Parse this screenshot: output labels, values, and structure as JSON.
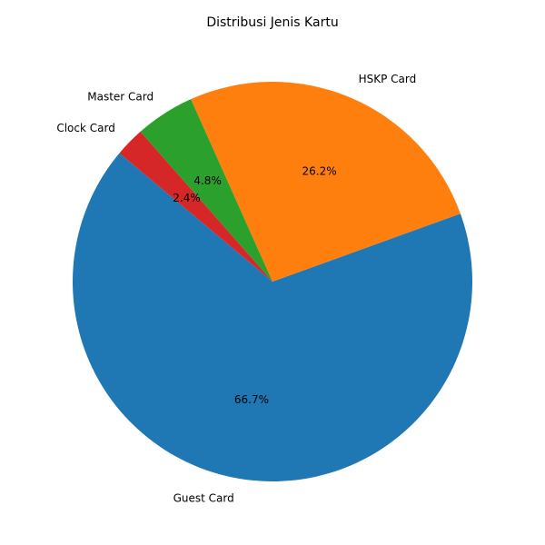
{
  "chart_data": {
    "type": "pie",
    "title": "Distribusi Jenis Kartu",
    "labels": [
      "Guest Card",
      "HSKP Card",
      "Master Card",
      "Clock Card"
    ],
    "values": [
      66.7,
      26.2,
      4.8,
      2.4
    ],
    "pct_labels": [
      "66.7%",
      "26.2%",
      "4.8%",
      "2.4%"
    ],
    "colors": [
      "#1f77b4",
      "#ff7f0e",
      "#2ca02c",
      "#d62728"
    ],
    "start_angle_deg": 140,
    "direction": "counterclockwise"
  }
}
